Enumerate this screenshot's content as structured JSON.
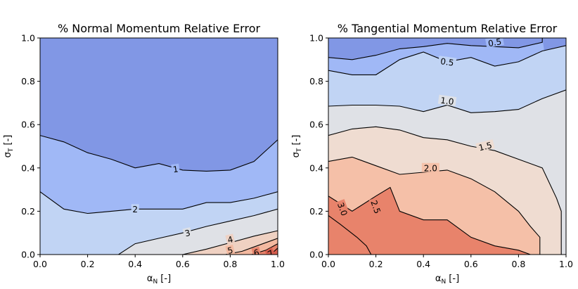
{
  "chart_data": [
    {
      "type": "contour",
      "title": "% Normal Momentum Relative Error",
      "xlabel": "α_N [-]",
      "ylabel": "σ_T [-]",
      "xlim": [
        0.0,
        1.0
      ],
      "ylim": [
        0.0,
        1.0
      ],
      "xticks": [
        "0.0",
        "0.2",
        "0.4",
        "0.6",
        "0.8",
        "1.0"
      ],
      "yticks": [
        "0.0",
        "0.2",
        "0.4",
        "0.6",
        "0.8",
        "1.0"
      ],
      "levels": [
        1,
        2,
        3,
        4,
        5,
        6,
        7
      ],
      "contour_labels": [
        "1",
        "2",
        "3",
        "4",
        "5",
        "6",
        "7"
      ],
      "colors": [
        "#8197e5",
        "#a0b8f6",
        "#c1d4f4",
        "#dfe1e6",
        "#efd1c2",
        "#f3b9a0",
        "#e8836b",
        "#d65d4e"
      ],
      "contour_lines": [
        {
          "level": 1,
          "points": [
            [
              0.0,
              0.55
            ],
            [
              0.1,
              0.52
            ],
            [
              0.2,
              0.47
            ],
            [
              0.3,
              0.44
            ],
            [
              0.4,
              0.4
            ],
            [
              0.5,
              0.42
            ],
            [
              0.6,
              0.39
            ],
            [
              0.7,
              0.385
            ],
            [
              0.8,
              0.39
            ],
            [
              0.9,
              0.43
            ],
            [
              0.96,
              0.49
            ],
            [
              1.0,
              0.53
            ]
          ]
        },
        {
          "level": 2,
          "points": [
            [
              0.0,
              0.29
            ],
            [
              0.1,
              0.21
            ],
            [
              0.2,
              0.19
            ],
            [
              0.3,
              0.2
            ],
            [
              0.4,
              0.21
            ],
            [
              0.5,
              0.21
            ],
            [
              0.6,
              0.21
            ],
            [
              0.7,
              0.24
            ],
            [
              0.8,
              0.24
            ],
            [
              0.9,
              0.26
            ],
            [
              1.0,
              0.29
            ]
          ]
        },
        {
          "level": 3,
          "points": [
            [
              0.33,
              0.0
            ],
            [
              0.4,
              0.05
            ],
            [
              0.5,
              0.075
            ],
            [
              0.6,
              0.1
            ],
            [
              0.7,
              0.13
            ],
            [
              0.8,
              0.155
            ],
            [
              0.9,
              0.18
            ],
            [
              1.0,
              0.21
            ]
          ]
        },
        {
          "level": 4,
          "points": [
            [
              0.6,
              0.0
            ],
            [
              0.7,
              0.025
            ],
            [
              0.8,
              0.055
            ],
            [
              0.9,
              0.085
            ],
            [
              1.0,
              0.11
            ]
          ]
        },
        {
          "level": 5,
          "points": [
            [
              0.78,
              0.0
            ],
            [
              0.85,
              0.015
            ],
            [
              0.9,
              0.035
            ],
            [
              1.0,
              0.075
            ]
          ]
        },
        {
          "level": 6,
          "points": [
            [
              0.89,
              0.0
            ],
            [
              0.95,
              0.02
            ],
            [
              1.0,
              0.05
            ]
          ]
        },
        {
          "level": 7,
          "points": [
            [
              0.96,
              0.0
            ],
            [
              0.98,
              0.01
            ],
            [
              1.0,
              0.03
            ]
          ]
        }
      ]
    },
    {
      "type": "contour",
      "title": "% Tangential Momentum Relative Error",
      "xlabel": "α_N [-]",
      "ylabel": "σ_T [-]",
      "xlim": [
        0.0,
        1.0
      ],
      "ylim": [
        0.0,
        1.0
      ],
      "xticks": [
        "0.0",
        "0.2",
        "0.4",
        "0.6",
        "0.8",
        "1.0"
      ],
      "yticks": [
        "0.0",
        "0.2",
        "0.4",
        "0.6",
        "0.8",
        "1.0"
      ],
      "levels": [
        0.5,
        1.0,
        1.5,
        2.0,
        2.5,
        3.0
      ],
      "contour_labels": [
        "0.5",
        "0.5",
        "1.0",
        "1.5",
        "2.0",
        "2.5",
        "3.0"
      ],
      "colors": [
        "#8197e5",
        "#a0b8f6",
        "#c1d4f4",
        "#dfe1e6",
        "#efdcd1",
        "#f5c0a8",
        "#e8836b"
      ],
      "contour_lines": [
        {
          "level": 0.5,
          "points": [
            [
              0.0,
              0.91
            ],
            [
              0.1,
              0.9
            ],
            [
              0.2,
              0.92
            ],
            [
              0.3,
              0.95
            ],
            [
              0.4,
              0.96
            ],
            [
              0.5,
              0.975
            ],
            [
              0.6,
              0.965
            ],
            [
              0.7,
              0.96
            ],
            [
              0.8,
              0.955
            ],
            [
              0.9,
              0.98
            ],
            [
              0.9,
              1.0
            ]
          ]
        },
        {
          "level": 0.5,
          "points": [
            [
              0.0,
              0.85
            ],
            [
              0.1,
              0.83
            ],
            [
              0.2,
              0.83
            ],
            [
              0.3,
              0.9
            ],
            [
              0.4,
              0.935
            ],
            [
              0.5,
              0.89
            ],
            [
              0.6,
              0.91
            ],
            [
              0.7,
              0.87
            ],
            [
              0.8,
              0.89
            ],
            [
              0.9,
              0.94
            ],
            [
              1.0,
              0.965
            ]
          ]
        },
        {
          "level": 1.0,
          "points": [
            [
              0.0,
              0.685
            ],
            [
              0.1,
              0.69
            ],
            [
              0.2,
              0.69
            ],
            [
              0.3,
              0.685
            ],
            [
              0.4,
              0.66
            ],
            [
              0.5,
              0.69
            ],
            [
              0.6,
              0.655
            ],
            [
              0.7,
              0.66
            ],
            [
              0.8,
              0.67
            ],
            [
              0.9,
              0.72
            ],
            [
              1.0,
              0.76
            ]
          ]
        },
        {
          "level": 1.5,
          "points": [
            [
              0.0,
              0.55
            ],
            [
              0.1,
              0.58
            ],
            [
              0.2,
              0.59
            ],
            [
              0.3,
              0.575
            ],
            [
              0.4,
              0.54
            ],
            [
              0.5,
              0.53
            ],
            [
              0.6,
              0.5
            ],
            [
              0.7,
              0.48
            ],
            [
              0.8,
              0.44
            ],
            [
              0.9,
              0.4
            ],
            [
              0.96,
              0.26
            ],
            [
              0.98,
              0.2
            ],
            [
              0.98,
              0.0
            ]
          ]
        },
        {
          "level": 2.0,
          "points": [
            [
              0.0,
              0.43
            ],
            [
              0.1,
              0.45
            ],
            [
              0.2,
              0.41
            ],
            [
              0.3,
              0.37
            ],
            [
              0.4,
              0.38
            ],
            [
              0.5,
              0.39
            ],
            [
              0.6,
              0.35
            ],
            [
              0.7,
              0.29
            ],
            [
              0.8,
              0.2
            ],
            [
              0.85,
              0.13
            ],
            [
              0.89,
              0.08
            ],
            [
              0.89,
              0.0
            ]
          ]
        },
        {
          "level": 2.5,
          "points": [
            [
              0.0,
              0.27
            ],
            [
              0.1,
              0.2
            ],
            [
              0.2,
              0.27
            ],
            [
              0.26,
              0.31
            ],
            [
              0.3,
              0.2
            ],
            [
              0.4,
              0.16
            ],
            [
              0.5,
              0.16
            ],
            [
              0.6,
              0.08
            ],
            [
              0.7,
              0.04
            ],
            [
              0.8,
              0.02
            ],
            [
              0.85,
              0.0
            ]
          ]
        },
        {
          "level": 3.0,
          "points": [
            [
              0.0,
              0.18
            ],
            [
              0.05,
              0.14
            ],
            [
              0.12,
              0.08
            ],
            [
              0.16,
              0.04
            ],
            [
              0.18,
              0.0
            ]
          ]
        }
      ]
    }
  ]
}
